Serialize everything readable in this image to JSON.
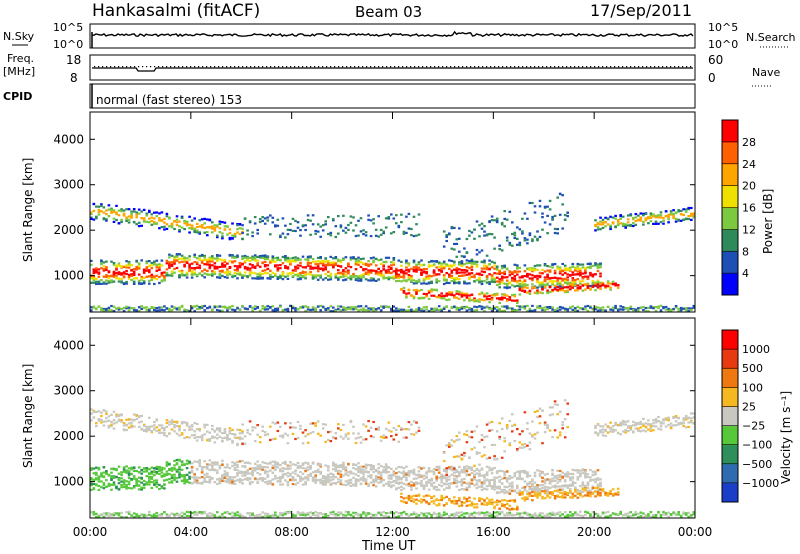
{
  "header": {
    "station": "Hankasalmi (fitACF)",
    "beam": "Beam 03",
    "date": "17/Sep/2011"
  },
  "top_panel": {
    "nsky_label": "N.Sky",
    "nsearch_label": "N.Search",
    "nsky_ticks": [
      "10^5",
      "10^0"
    ],
    "nsearch_ticks": [
      "10^5",
      "10^0"
    ],
    "freq_label_line1": "Freq.",
    "freq_label_line2": "[MHz]",
    "freq_ticks": [
      "18",
      "8"
    ],
    "nave_label": "Nave",
    "nave_ticks": [
      "60",
      "0"
    ],
    "cpid_label": "CPID",
    "cpid_text": "normal (fast stereo) 153"
  },
  "chart_data": [
    {
      "type": "heatmap",
      "name": "power",
      "ylabel": "Slant Range [km]",
      "yticks": [
        1000,
        2000,
        3000,
        4000
      ],
      "ylim": [
        200,
        4600
      ],
      "xticks": [
        "00:00",
        "04:00",
        "08:00",
        "12:00",
        "16:00",
        "20:00",
        "00:00"
      ],
      "xlim_hours": [
        0,
        24
      ],
      "colorbar_label": "Power [dB]",
      "colorbar_ticks": [
        "28",
        "24",
        "20",
        "16",
        "12",
        "8",
        "4"
      ],
      "colorbar_colors": [
        "#0000ff",
        "#1e4fb4",
        "#2e8a5a",
        "#7cc83e",
        "#f0e000",
        "#ffa500",
        "#ff6000",
        "#ff0000"
      ]
    },
    {
      "type": "heatmap",
      "name": "velocity",
      "ylabel": "Slant Range [km]",
      "yticks": [
        1000,
        2000,
        3000,
        4000
      ],
      "ylim": [
        200,
        4600
      ],
      "xticks": [
        "00:00",
        "04:00",
        "08:00",
        "12:00",
        "16:00",
        "20:00",
        "00:00"
      ],
      "xlabel": "Time UT",
      "colorbar_label": "Velocity [m s⁻¹]",
      "colorbar_ticks": [
        "1000",
        "500",
        "100",
        "25",
        "−25",
        "−100",
        "−500",
        "−1000"
      ],
      "colorbar_colors": [
        "#1a3ec8",
        "#2e6bb0",
        "#2f8f5b",
        "#56c83a",
        "#c8c8c0",
        "#f5b820",
        "#f07810",
        "#e83a10",
        "#ff0000"
      ]
    }
  ]
}
